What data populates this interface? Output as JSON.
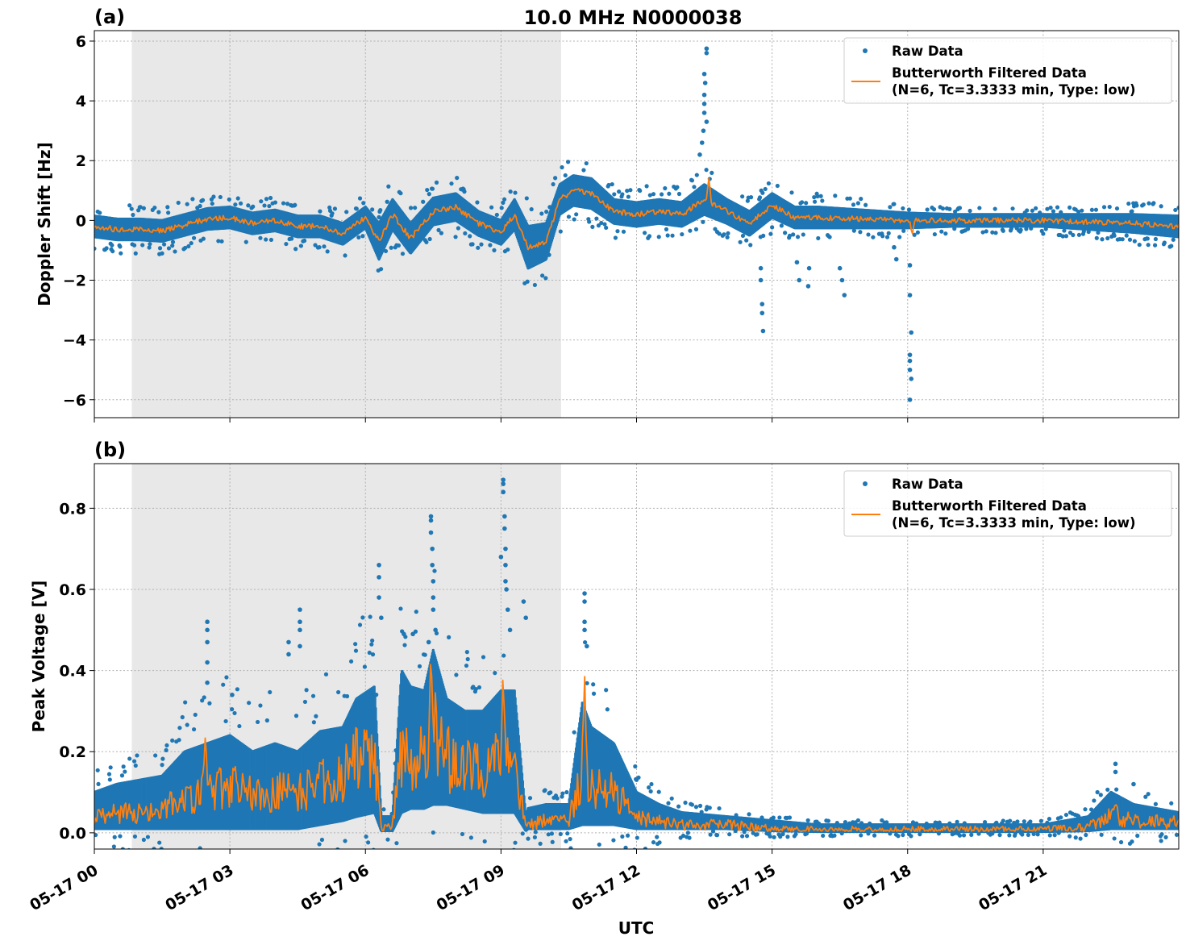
{
  "figure": {
    "title": "10.0 MHz N0000038",
    "xlabel": "UTC",
    "x_tick_labels": [
      "05-17 00",
      "05-17 03",
      "05-17 06",
      "05-17 09",
      "05-17 12",
      "05-17 15",
      "05-17 18",
      "05-17 21"
    ],
    "night_shading_hours": [
      0.83,
      10.33
    ],
    "colors": {
      "raw": "#1f77b4",
      "filtered": "#ff7f0e",
      "shade": "#e8e8e8"
    },
    "legend": {
      "raw_label": "Raw Data",
      "filtered_label_line1": "Butterworth Filtered Data",
      "filtered_label_line2": "(N=6, Tc=3.3333 min, Type: low)",
      "placement": "upper right"
    }
  },
  "chart_data": [
    {
      "type": "scatter",
      "panel_label": "(a)",
      "ylabel": "Doppler Shift [Hz]",
      "xlim_hours": [
        0,
        24
      ],
      "ylim": [
        -6.6,
        6.35
      ],
      "y_ticks": [
        6,
        4,
        2,
        0,
        -2,
        -4,
        -6
      ],
      "y_tick_labels": [
        "6",
        "4",
        "2",
        "0",
        "−2",
        "−4",
        "−6"
      ],
      "grid": true,
      "series": [
        {
          "name": "Raw Data",
          "style": "points",
          "band": {
            "x": [
              0,
              0.5,
              1,
              1.5,
              2,
              2.5,
              3,
              3.5,
              4,
              4.5,
              5,
              5.5,
              6,
              6.3,
              6.6,
              7,
              7.5,
              8,
              8.5,
              9,
              9.3,
              9.6,
              10,
              10.3,
              10.6,
              11,
              11.5,
              12,
              12.5,
              13,
              13.5,
              14,
              14.5,
              15,
              15.5,
              16,
              17,
              18,
              19,
              20,
              21,
              22,
              23,
              24
            ],
            "center": [
              -0.2,
              -0.3,
              -0.3,
              -0.35,
              -0.15,
              0.05,
              0.1,
              -0.1,
              0,
              -0.2,
              -0.2,
              -0.45,
              0.1,
              -0.7,
              0.2,
              -0.6,
              0.3,
              0.45,
              -0.1,
              -0.4,
              0.2,
              -0.9,
              -0.7,
              0.7,
              1.0,
              0.9,
              0.3,
              0.2,
              0.3,
              0.2,
              0.7,
              0.3,
              -0.1,
              0.5,
              0.1,
              0.1,
              0.05,
              0.0,
              0.0,
              0.0,
              0.0,
              -0.05,
              -0.1,
              -0.2
            ],
            "spread": [
              0.35,
              0.35,
              0.35,
              0.35,
              0.35,
              0.35,
              0.35,
              0.35,
              0.35,
              0.35,
              0.35,
              0.35,
              0.35,
              0.6,
              0.5,
              0.5,
              0.45,
              0.45,
              0.4,
              0.4,
              0.5,
              0.7,
              0.6,
              0.5,
              0.5,
              0.5,
              0.4,
              0.4,
              0.4,
              0.4,
              0.5,
              0.4,
              0.4,
              0.4,
              0.35,
              0.35,
              0.3,
              0.25,
              0.2,
              0.2,
              0.2,
              0.25,
              0.3,
              0.35
            ]
          },
          "outliers": [
            [
              13.55,
              5.75
            ],
            [
              13.55,
              5.6
            ],
            [
              13.5,
              4.9
            ],
            [
              13.52,
              4.6
            ],
            [
              13.5,
              4.2
            ],
            [
              13.5,
              3.9
            ],
            [
              13.5,
              3.6
            ],
            [
              13.55,
              3.3
            ],
            [
              13.48,
              3.0
            ],
            [
              13.45,
              2.6
            ],
            [
              13.4,
              2.2
            ],
            [
              14.75,
              -2.0
            ],
            [
              14.75,
              -1.6
            ],
            [
              14.78,
              -2.8
            ],
            [
              14.78,
              -3.1
            ],
            [
              14.8,
              -3.7
            ],
            [
              15.55,
              -1.4
            ],
            [
              15.6,
              -2.0
            ],
            [
              15.8,
              -2.2
            ],
            [
              15.82,
              -1.6
            ],
            [
              16.55,
              -2.0
            ],
            [
              16.6,
              -2.5
            ],
            [
              16.5,
              -1.6
            ],
            [
              17.7,
              -0.9
            ],
            [
              17.75,
              -1.3
            ],
            [
              18.05,
              -1.5
            ],
            [
              18.05,
              -2.5
            ],
            [
              18.08,
              -3.75
            ],
            [
              18.05,
              -4.5
            ],
            [
              18.05,
              -4.7
            ],
            [
              18.05,
              -5.0
            ],
            [
              18.08,
              -5.3
            ],
            [
              18.05,
              -6.0
            ]
          ]
        },
        {
          "name": "Butterworth Filtered Data (N=6, Tc=3.3333 min, Type: low)",
          "style": "line",
          "x": [
            0,
            0.5,
            1,
            1.5,
            2,
            2.5,
            3,
            3.5,
            4,
            4.5,
            5,
            5.5,
            6,
            6.3,
            6.6,
            7,
            7.5,
            8,
            8.5,
            9,
            9.3,
            9.6,
            10,
            10.3,
            10.6,
            11,
            11.5,
            12,
            12.5,
            13,
            13.5,
            14,
            14.5,
            15,
            15.5,
            16,
            17,
            18,
            19,
            20,
            21,
            22,
            23,
            24
          ],
          "y": [
            -0.2,
            -0.3,
            -0.3,
            -0.35,
            -0.15,
            0.05,
            0.1,
            -0.1,
            0,
            -0.2,
            -0.2,
            -0.45,
            0.1,
            -0.7,
            0.2,
            -0.6,
            0.3,
            0.45,
            -0.1,
            -0.4,
            0.2,
            -0.9,
            -0.7,
            0.7,
            1.0,
            0.9,
            0.3,
            0.2,
            0.3,
            0.2,
            0.7,
            0.3,
            -0.1,
            0.5,
            0.1,
            0.1,
            0.05,
            0.0,
            0.0,
            0.0,
            0.0,
            -0.05,
            -0.1,
            -0.2
          ],
          "spikes": [
            [
              13.6,
              1.4
            ],
            [
              18.1,
              -0.5
            ]
          ]
        }
      ]
    },
    {
      "type": "scatter",
      "panel_label": "(b)",
      "ylabel": "Peak Voltage [V]",
      "xlim_hours": [
        0,
        24
      ],
      "ylim": [
        -0.04,
        0.91
      ],
      "y_ticks": [
        0.0,
        0.2,
        0.4,
        0.6,
        0.8
      ],
      "y_tick_labels": [
        "0.0",
        "0.2",
        "0.4",
        "0.6",
        "0.8"
      ],
      "grid": true,
      "series": [
        {
          "name": "Raw Data",
          "style": "points",
          "band": {
            "x": [
              0,
              0.5,
              1,
              1.5,
              2,
              2.5,
              3,
              3.5,
              4,
              4.5,
              5,
              5.5,
              5.8,
              6.2,
              6.35,
              6.6,
              6.8,
              7,
              7.3,
              7.5,
              7.8,
              8.2,
              8.6,
              9,
              9.3,
              9.55,
              9.6,
              10,
              10.5,
              10.8,
              11,
              11.5,
              12,
              12.5,
              13,
              14,
              15,
              16,
              18,
              20,
              21,
              22,
              22.5,
              23,
              24
            ],
            "low": [
              0.01,
              0.01,
              0.01,
              0.01,
              0.01,
              0.01,
              0.01,
              0.01,
              0.01,
              0.01,
              0.02,
              0.03,
              0.04,
              0.05,
              0.005,
              0.005,
              0.05,
              0.06,
              0.06,
              0.07,
              0.07,
              0.06,
              0.05,
              0.05,
              0.05,
              0.005,
              0.01,
              0.01,
              0.01,
              0.02,
              0.02,
              0.02,
              0.01,
              0.01,
              0.01,
              0.01,
              0.005,
              0.003,
              0.003,
              0.003,
              0.003,
              0.005,
              0.01,
              0.01,
              0.01
            ],
            "high": [
              0.1,
              0.12,
              0.13,
              0.14,
              0.2,
              0.22,
              0.24,
              0.2,
              0.22,
              0.2,
              0.25,
              0.26,
              0.33,
              0.36,
              0.04,
              0.04,
              0.4,
              0.36,
              0.35,
              0.45,
              0.33,
              0.3,
              0.3,
              0.35,
              0.35,
              0.04,
              0.06,
              0.07,
              0.07,
              0.32,
              0.26,
              0.22,
              0.1,
              0.07,
              0.05,
              0.04,
              0.03,
              0.02,
              0.02,
              0.02,
              0.02,
              0.04,
              0.1,
              0.07,
              0.05
            ]
          },
          "outliers": [
            [
              2.5,
              0.52
            ],
            [
              2.5,
              0.5
            ],
            [
              2.5,
              0.47
            ],
            [
              2.5,
              0.42
            ],
            [
              2.5,
              0.37
            ],
            [
              3.05,
              0.34
            ],
            [
              4.3,
              0.47
            ],
            [
              4.3,
              0.44
            ],
            [
              4.55,
              0.55
            ],
            [
              4.55,
              0.52
            ],
            [
              4.55,
              0.5
            ],
            [
              4.55,
              0.46
            ],
            [
              6.3,
              0.66
            ],
            [
              6.3,
              0.63
            ],
            [
              6.3,
              0.58
            ],
            [
              6.35,
              0.53
            ],
            [
              6.85,
              0.49
            ],
            [
              7.05,
              0.49
            ],
            [
              7.4,
              0.47
            ],
            [
              7.45,
              0.78
            ],
            [
              7.45,
              0.77
            ],
            [
              7.45,
              0.74
            ],
            [
              7.48,
              0.7
            ],
            [
              7.48,
              0.66
            ],
            [
              7.5,
              0.62
            ],
            [
              7.5,
              0.58
            ],
            [
              7.5,
              0.55
            ],
            [
              7.55,
              0.5
            ],
            [
              9.05,
              0.87
            ],
            [
              9.05,
              0.86
            ],
            [
              9.05,
              0.84
            ],
            [
              9.08,
              0.78
            ],
            [
              9.08,
              0.75
            ],
            [
              9.1,
              0.7
            ],
            [
              9.1,
              0.66
            ],
            [
              9.1,
              0.62
            ],
            [
              9.0,
              0.68
            ],
            [
              9.12,
              0.6
            ],
            [
              9.15,
              0.55
            ],
            [
              9.2,
              0.5
            ],
            [
              9.5,
              0.57
            ],
            [
              9.55,
              0.53
            ],
            [
              10.85,
              0.59
            ],
            [
              10.85,
              0.57
            ],
            [
              10.85,
              0.52
            ],
            [
              10.85,
              0.5
            ],
            [
              10.9,
              0.46
            ],
            [
              22.6,
              0.17
            ],
            [
              22.6,
              0.15
            ],
            [
              23.0,
              0.12
            ]
          ]
        },
        {
          "name": "Butterworth Filtered Data (N=6, Tc=3.3333 min, Type: low)",
          "style": "line",
          "x": [
            0,
            0.5,
            1,
            1.5,
            2,
            2.5,
            3,
            3.5,
            4,
            4.5,
            5,
            5.5,
            5.8,
            6.2,
            6.35,
            6.6,
            6.8,
            7,
            7.3,
            7.5,
            7.8,
            8.2,
            8.6,
            9,
            9.3,
            9.55,
            9.6,
            10,
            10.5,
            10.8,
            11,
            11.5,
            12,
            12.5,
            13,
            14,
            15,
            16,
            18,
            20,
            21,
            22,
            22.5,
            23,
            24
          ],
          "y": [
            0.04,
            0.05,
            0.05,
            0.06,
            0.08,
            0.1,
            0.12,
            0.09,
            0.1,
            0.1,
            0.12,
            0.14,
            0.18,
            0.2,
            0.015,
            0.015,
            0.2,
            0.18,
            0.2,
            0.25,
            0.18,
            0.16,
            0.15,
            0.2,
            0.18,
            0.01,
            0.02,
            0.03,
            0.03,
            0.15,
            0.12,
            0.1,
            0.04,
            0.03,
            0.02,
            0.02,
            0.01,
            0.008,
            0.008,
            0.008,
            0.008,
            0.015,
            0.04,
            0.03,
            0.025
          ],
          "spikes": [
            [
              2.45,
              0.24
            ],
            [
              7.45,
              0.44
            ],
            [
              9.05,
              0.4
            ],
            [
              10.85,
              0.4
            ],
            [
              22.6,
              0.08
            ]
          ]
        }
      ]
    }
  ]
}
